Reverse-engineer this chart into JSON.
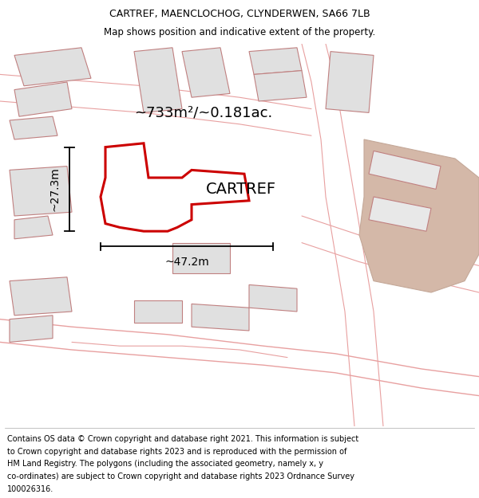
{
  "title": "CARTREF, MAENCLOCHOG, CLYNDERWEN, SA66 7LB",
  "subtitle": "Map shows position and indicative extent of the property.",
  "footer_line1": "Contains OS data © Crown copyright and database right 2021. This information is subject",
  "footer_line2": "to Crown copyright and database rights 2023 and is reproduced with the permission of",
  "footer_line3": "HM Land Registry. The polygons (including the associated geometry, namely x, y",
  "footer_line4": "co-ordinates) are subject to Crown copyright and database rights 2023 Ordnance Survey",
  "footer_line5": "100026316.",
  "area_label": "~733m²/~0.181ac.",
  "property_label": "CARTREF",
  "dim_width": "~47.2m",
  "dim_height": "~27.3m",
  "road_color": "#e8a0a0",
  "building_fill": "#e0e0e0",
  "building_edge": "#c08080",
  "tan_fill": "#d4b8a8",
  "tan_edge": "#c4a898",
  "property_edge": "#cc0000",
  "property_fill": "#ffffff",
  "text_color": "#000000",
  "title_fontsize": 9.0,
  "subtitle_fontsize": 8.5,
  "footer_fontsize": 7.0,
  "area_fontsize": 13,
  "label_fontsize": 14,
  "dim_fontsize": 10
}
